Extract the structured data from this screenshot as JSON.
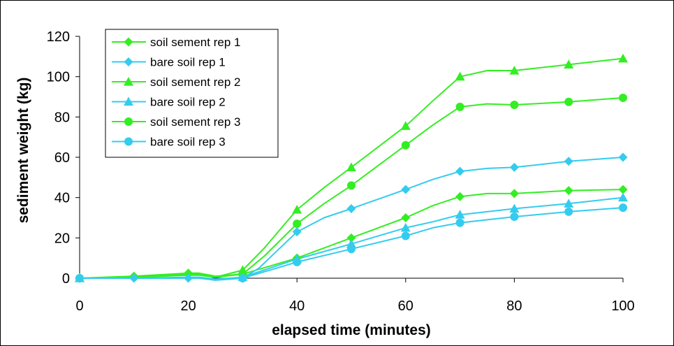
{
  "chart_data": {
    "type": "line",
    "title": "",
    "xlabel": "elapsed time (minutes)",
    "ylabel": "sediment weight (kg)",
    "xlim": [
      0,
      100
    ],
    "ylim": [
      0,
      120
    ],
    "xticks": [
      0,
      20,
      40,
      60,
      80,
      100
    ],
    "yticks": [
      0,
      20,
      40,
      60,
      80,
      100,
      120
    ],
    "grid": false,
    "legend_position": "top-left",
    "colors": {
      "soil_sement": "#33ee22",
      "bare_soil": "#33ccee"
    },
    "series": [
      {
        "name": "soil sement rep 1",
        "color": "#33ee22",
        "marker": "diamond",
        "x": [
          0,
          10,
          20,
          22,
          25,
          30,
          40,
          50,
          60,
          65,
          70,
          75,
          80,
          90,
          100
        ],
        "y": [
          0,
          1,
          2.5,
          2.5,
          1,
          2,
          10,
          20,
          30,
          36,
          40.5,
          42,
          42,
          43.5,
          44
        ],
        "markers_x": [
          0,
          10,
          20,
          30,
          40,
          50,
          60,
          70,
          80,
          90,
          100
        ]
      },
      {
        "name": "bare soil rep 1",
        "color": "#33ccee",
        "marker": "diamond",
        "x": [
          0,
          10,
          20,
          22,
          25,
          30,
          33,
          40,
          45,
          50,
          60,
          65,
          70,
          75,
          80,
          90,
          100
        ],
        "y": [
          0,
          0,
          0,
          0,
          -1,
          0,
          5,
          23,
          30,
          34.5,
          44,
          49,
          53,
          54.5,
          55,
          58,
          60
        ],
        "markers_x": [
          0,
          10,
          20,
          30,
          40,
          50,
          60,
          70,
          80,
          90,
          100
        ]
      },
      {
        "name": "soil sement rep 2",
        "color": "#33ee22",
        "marker": "triangle",
        "x": [
          0,
          10,
          20,
          22,
          25,
          30,
          34,
          40,
          45,
          50,
          60,
          65,
          70,
          75,
          80,
          90,
          100
        ],
        "y": [
          0,
          0.5,
          2,
          2,
          0.5,
          4,
          15,
          34,
          45,
          55,
          75.5,
          88,
          100,
          103,
          103,
          106,
          109
        ],
        "markers_x": [
          0,
          30,
          40,
          50,
          60,
          70,
          80,
          90,
          100
        ]
      },
      {
        "name": "bare soil rep 2",
        "color": "#33ccee",
        "marker": "triangle",
        "x": [
          0,
          10,
          20,
          22,
          25,
          30,
          40,
          50,
          60,
          65,
          70,
          75,
          80,
          90,
          100
        ],
        "y": [
          0,
          0,
          0.5,
          0.5,
          -0.5,
          0.5,
          9.5,
          17,
          25,
          28,
          31.5,
          33,
          34.5,
          37,
          40
        ],
        "markers_x": [
          0,
          30,
          40,
          50,
          60,
          70,
          80,
          90,
          100
        ]
      },
      {
        "name": "soil sement rep 3",
        "color": "#33ee22",
        "marker": "circle",
        "x": [
          0,
          10,
          20,
          22,
          25,
          30,
          34,
          40,
          45,
          50,
          60,
          65,
          70,
          75,
          80,
          90,
          100
        ],
        "y": [
          0,
          0.5,
          1.5,
          1.5,
          0.5,
          2,
          11,
          27,
          37,
          46,
          66,
          76,
          85,
          86.5,
          86,
          87.5,
          89.5
        ],
        "markers_x": [
          0,
          30,
          40,
          50,
          60,
          70,
          80,
          90,
          100
        ]
      },
      {
        "name": "bare soil rep 3",
        "color": "#33ccee",
        "marker": "circle",
        "x": [
          0,
          10,
          20,
          22,
          25,
          30,
          40,
          50,
          60,
          65,
          70,
          75,
          80,
          90,
          100
        ],
        "y": [
          0,
          0,
          0,
          0,
          -0.5,
          0,
          8,
          14.5,
          21,
          25,
          27.5,
          29,
          30.5,
          33,
          35
        ],
        "markers_x": [
          0,
          30,
          40,
          50,
          60,
          70,
          80,
          90,
          100
        ]
      }
    ]
  }
}
